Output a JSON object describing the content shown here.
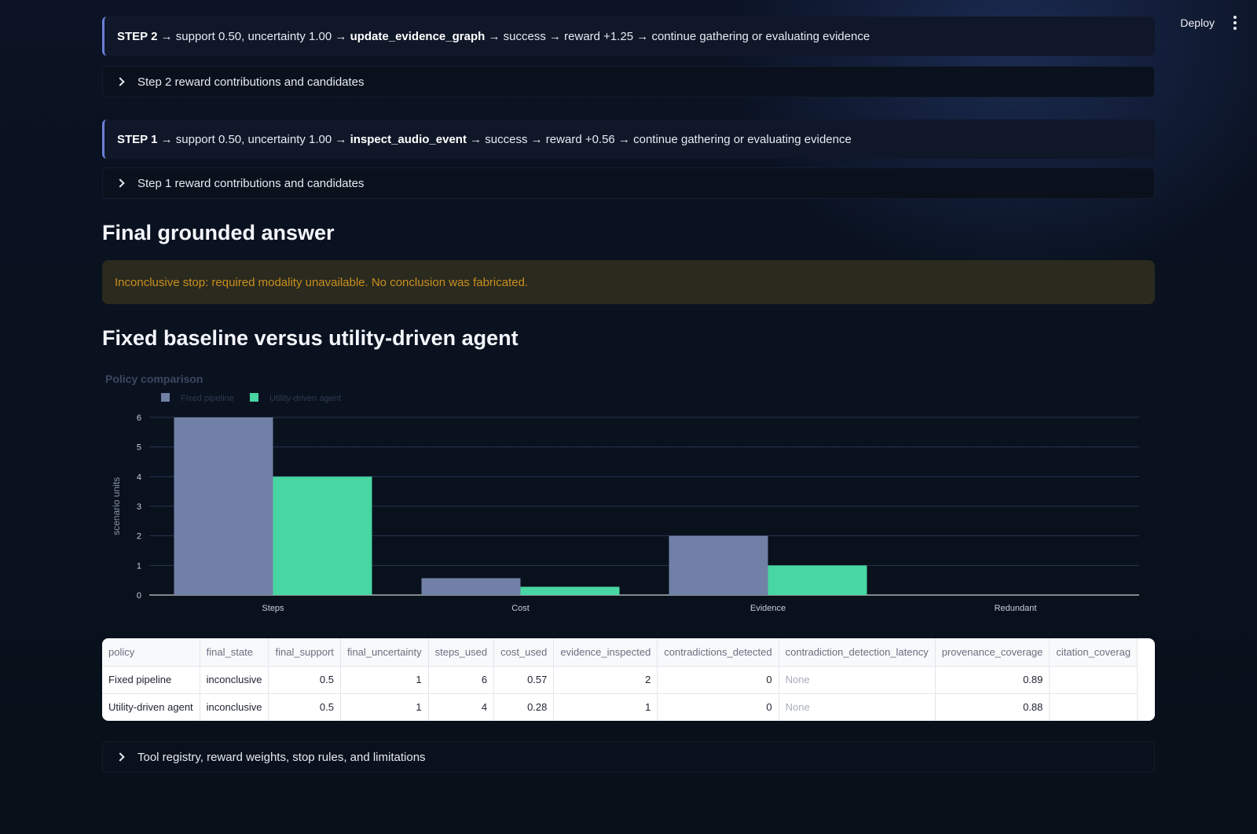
{
  "topbar": {
    "deploy_label": "Deploy"
  },
  "steps": [
    {
      "label": "STEP 2",
      "arrow1": " → support 0.50, uncertainty 1.00 → ",
      "action": "update_evidence_graph",
      "rest": " → success → reward +1.25 → continue gathering or evaluating evidence",
      "expander": "Step 2 reward contributions and candidates"
    },
    {
      "label": "STEP 1",
      "arrow1": " → support 0.50, uncertainty 1.00 → ",
      "action": "inspect_audio_event",
      "rest": " → success → reward +0.56 → continue gathering or evaluating evidence",
      "expander": "Step 1 reward contributions and candidates"
    }
  ],
  "final": {
    "heading": "Final grounded answer",
    "alert": "Inconclusive stop: required modality unavailable. No conclusion was fabricated."
  },
  "comparison": {
    "heading": "Fixed baseline versus utility-driven agent"
  },
  "chart_data": {
    "type": "bar",
    "title": "Policy comparison",
    "ylabel": "scenario units",
    "xlabel": "",
    "ylim": [
      0,
      6
    ],
    "yticks": [
      0,
      1,
      2,
      3,
      4,
      5,
      6
    ],
    "categories": [
      "Steps",
      "Cost",
      "Evidence",
      "Redundant"
    ],
    "series": [
      {
        "name": "Fixed pipeline",
        "color": "#7080a6",
        "values": [
          6,
          0.57,
          2,
          0
        ]
      },
      {
        "name": "Utility-driven agent",
        "color": "#48d6a2",
        "values": [
          4,
          0.28,
          1,
          0
        ]
      }
    ],
    "legend": "top-left",
    "grid": true
  },
  "table": {
    "columns": [
      "policy",
      "final_state",
      "final_support",
      "final_uncertainty",
      "steps_used",
      "cost_used",
      "evidence_inspected",
      "contradictions_detected",
      "contradiction_detection_latency",
      "provenance_coverage",
      "citation_coverag"
    ],
    "rows": [
      [
        "Fixed pipeline",
        "inconclusive",
        "0.5",
        "1",
        "6",
        "0.57",
        "2",
        "0",
        "None",
        "0.89",
        ""
      ],
      [
        "Utility-driven agent",
        "inconclusive",
        "0.5",
        "1",
        "4",
        "0.28",
        "1",
        "0",
        "None",
        "0.88",
        ""
      ]
    ]
  },
  "footer_expander": "Tool registry, reward weights, stop rules, and limitations"
}
